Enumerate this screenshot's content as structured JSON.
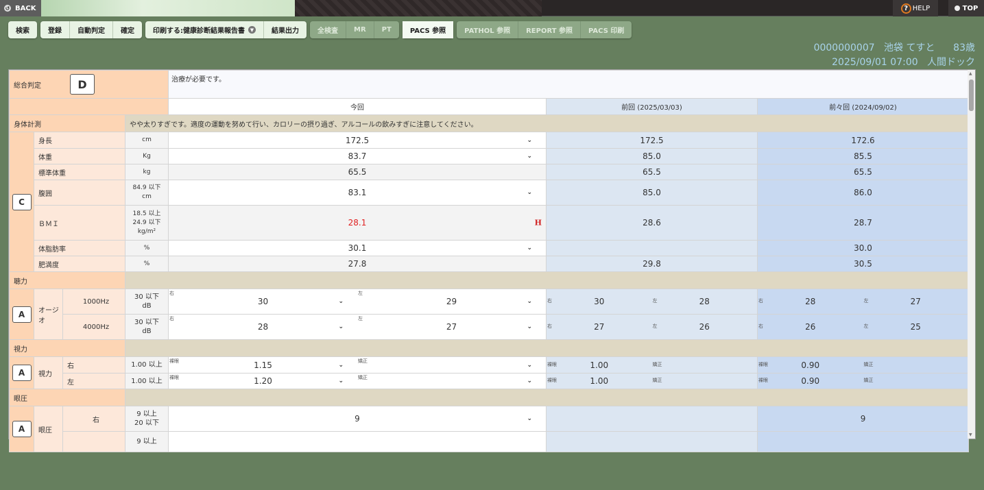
{
  "topbar": {
    "back": "BACK",
    "help": "HELP",
    "top": "TOP"
  },
  "toolbar": {
    "groups": [
      {
        "dim": false,
        "buttons": [
          "検索"
        ]
      },
      {
        "dim": false,
        "buttons": [
          "登録",
          "自動判定",
          "確定"
        ]
      },
      {
        "dim": false,
        "buttons": [
          "印刷する:健康診断結果報告書",
          "結果出力"
        ]
      },
      {
        "dim": true,
        "buttons": [
          "全検査",
          "MR",
          "PT"
        ]
      },
      {
        "dim": false,
        "buttons": [
          "PACS 参照"
        ]
      },
      {
        "dim": true,
        "buttons": [
          "PATHOL 参照",
          "REPORT 参照",
          "PACS 印刷"
        ]
      }
    ]
  },
  "patient": {
    "id": "0000000007",
    "name": "池袋 てすと",
    "age": "83歳",
    "datetime": "2025/09/01 07:00",
    "course": "人間ドック"
  },
  "overall": {
    "label": "総合判定",
    "grade": "D",
    "comment": "治療が必要です。"
  },
  "columns": {
    "current": "今回",
    "prev": "前回 (2025/03/03)",
    "prev2": "前々回 (2024/09/02)"
  },
  "body": {
    "title": "身体計測",
    "grade": "C",
    "comment": "やや太りすぎです。適度の運動を努めて行い、カロリーの摂り過ぎ、アルコールの飲みすぎに注意してください。",
    "rows": [
      {
        "label": "身長",
        "unit": "cm",
        "current": "172.5",
        "dropdown": true,
        "prev": "172.5",
        "prev2": "172.6"
      },
      {
        "label": "体重",
        "unit": "Kg",
        "current": "83.7",
        "dropdown": true,
        "prev": "85.0",
        "prev2": "85.5"
      },
      {
        "label": "標準体重",
        "unit": "kg",
        "current": "65.5",
        "dropdown": false,
        "prev": "65.5",
        "prev2": "65.5"
      },
      {
        "label": "腹囲",
        "unit": "84.9 以下\ncm",
        "current": "83.1",
        "dropdown": true,
        "prev": "85.0",
        "prev2": "86.0"
      },
      {
        "label": "ＢＭＩ",
        "unit": "18.5 以上\n24.9 以下\nkg/m²",
        "current": "28.1",
        "flag": "H",
        "dropdown": false,
        "prev": "28.6",
        "prev2": "28.7"
      },
      {
        "label": "体脂肪率",
        "unit": "%",
        "current": "30.1",
        "dropdown": true,
        "prev": "",
        "prev2": "30.0"
      },
      {
        "label": "肥満度",
        "unit": "%",
        "current": "27.8",
        "dropdown": false,
        "prev": "29.8",
        "prev2": "30.5"
      }
    ]
  },
  "hearing": {
    "title": "聴力",
    "grade": "A",
    "group": "オージオ",
    "sub1": "右",
    "sub2": "左",
    "rows": [
      {
        "label": "1000Hz",
        "unit": "30 以下\ndB",
        "current": [
          "30",
          "29"
        ],
        "prev": [
          "30",
          "28"
        ],
        "prev2": [
          "28",
          "27"
        ]
      },
      {
        "label": "4000Hz",
        "unit": "30 以下\ndB",
        "current": [
          "28",
          "27"
        ],
        "prev": [
          "27",
          "26"
        ],
        "prev2": [
          "26",
          "25"
        ]
      }
    ]
  },
  "vision": {
    "title": "視力",
    "grade": "A",
    "group": "視力",
    "sub1": "裸眼",
    "sub2": "矯正",
    "rows": [
      {
        "label": "右",
        "unit": "1.00 以上",
        "current": [
          "1.15",
          ""
        ],
        "prev": [
          "1.00",
          ""
        ],
        "prev2": [
          "0.90",
          ""
        ]
      },
      {
        "label": "左",
        "unit": "1.00 以上",
        "current": [
          "1.20",
          ""
        ],
        "prev": [
          "1.00",
          ""
        ],
        "prev2": [
          "0.90",
          ""
        ]
      }
    ]
  },
  "pressure": {
    "title": "眼圧",
    "grade": "A",
    "group": "眼圧",
    "rows": [
      {
        "label": "右",
        "unit": "9 以上\n20 以下",
        "current": "9",
        "prev": "",
        "prev2": "9"
      },
      {
        "label": "",
        "unit": "9 以上",
        "current": "",
        "prev": "",
        "prev2": ""
      }
    ]
  },
  "colors": {
    "background": "#667f5e",
    "section": "#fdd5b4",
    "comment": "#dfd8c3",
    "prev": "#dce6f2",
    "prev2": "#c8d9f1",
    "high": "#e02020",
    "patient_text": "#a8d3ea"
  }
}
